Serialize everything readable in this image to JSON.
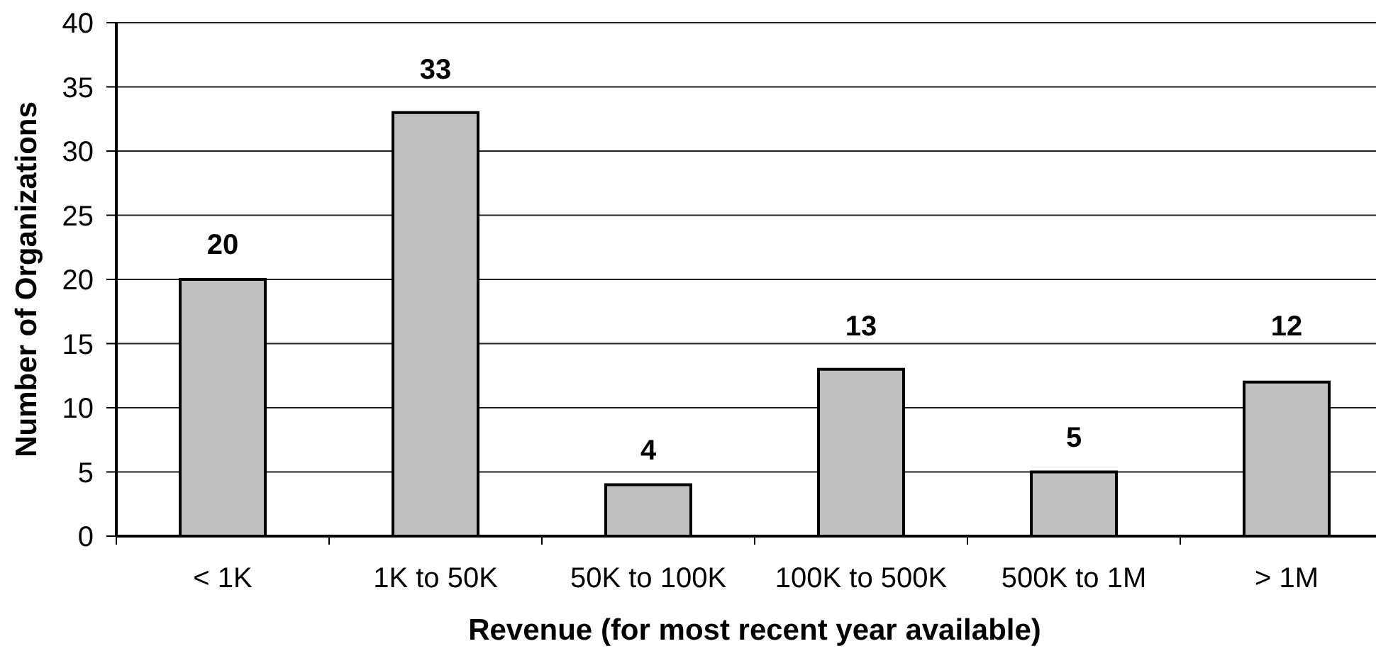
{
  "chart_data": {
    "type": "bar",
    "xlabel": "Revenue (for most recent year available)",
    "ylabel": "Number of Organizations",
    "categories": [
      "< 1K",
      "1K to 50K",
      "50K to 100K",
      "100K to 500K",
      "500K to 1M",
      "> 1M"
    ],
    "values": [
      20,
      33,
      4,
      13,
      5,
      12
    ],
    "color": "#c0c0c0",
    "ylim": [
      0,
      40
    ],
    "yticks": [
      0,
      5,
      10,
      15,
      20,
      25,
      30,
      35,
      40
    ],
    "grid": "y",
    "data_labels": true
  }
}
